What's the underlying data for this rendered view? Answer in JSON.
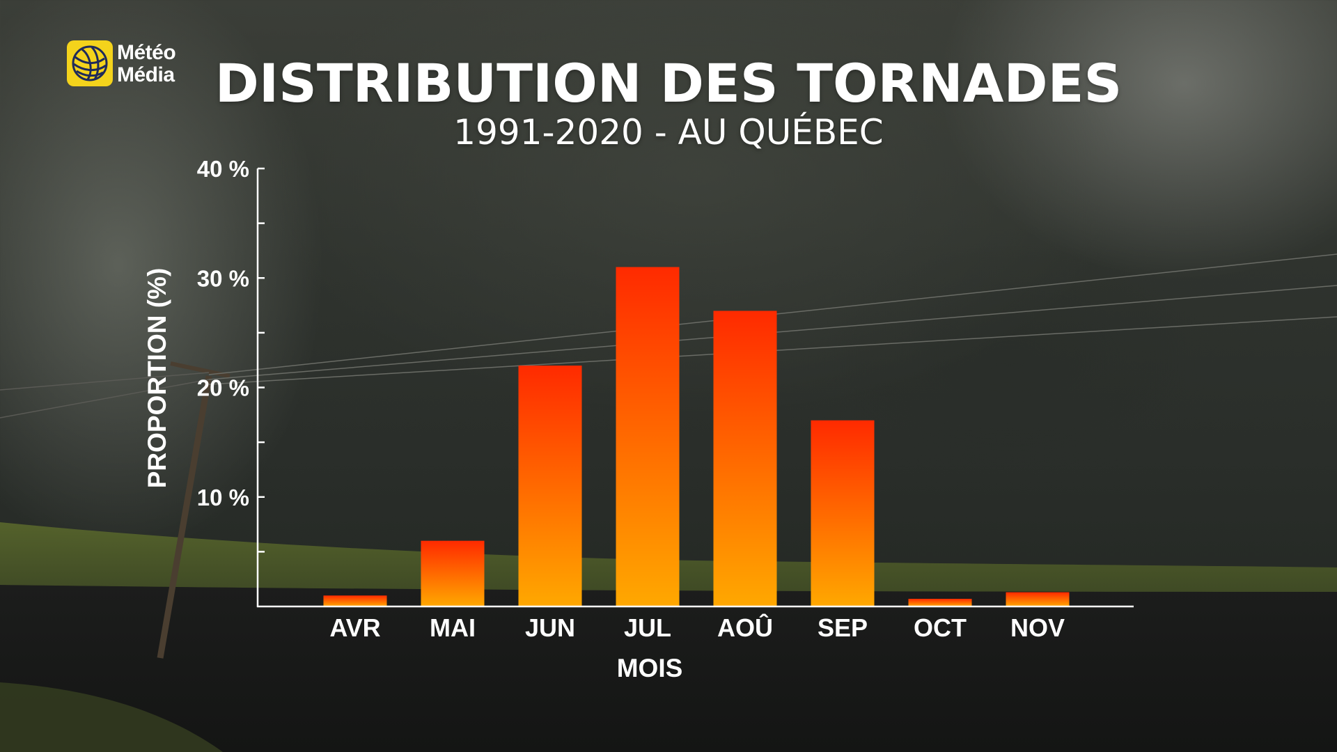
{
  "logo": {
    "line1": "Météo",
    "line2": "Média"
  },
  "chart_data": {
    "type": "bar",
    "title": "DISTRIBUTION DES TORNADES",
    "subtitle": "1991-2020 - AU QUÉBEC",
    "xlabel": "MOIS",
    "ylabel": "PROPORTION (%)",
    "categories": [
      "AVR",
      "MAI",
      "JUN",
      "JUL",
      "AOÛ",
      "SEP",
      "OCT",
      "NOV"
    ],
    "values": [
      1,
      6,
      22,
      31,
      27,
      17,
      0.7,
      1.3
    ],
    "ylim": [
      0,
      40
    ],
    "yticks": [
      {
        "value": 10,
        "label": "10 %"
      },
      {
        "value": 20,
        "label": "20 %"
      },
      {
        "value": 30,
        "label": "30 %"
      },
      {
        "value": 40,
        "label": "40 %"
      }
    ],
    "minor_tick_step": 5,
    "grid": false,
    "bar_gradient": {
      "top": "#ff2a00",
      "bottom": "#ffa800"
    }
  }
}
